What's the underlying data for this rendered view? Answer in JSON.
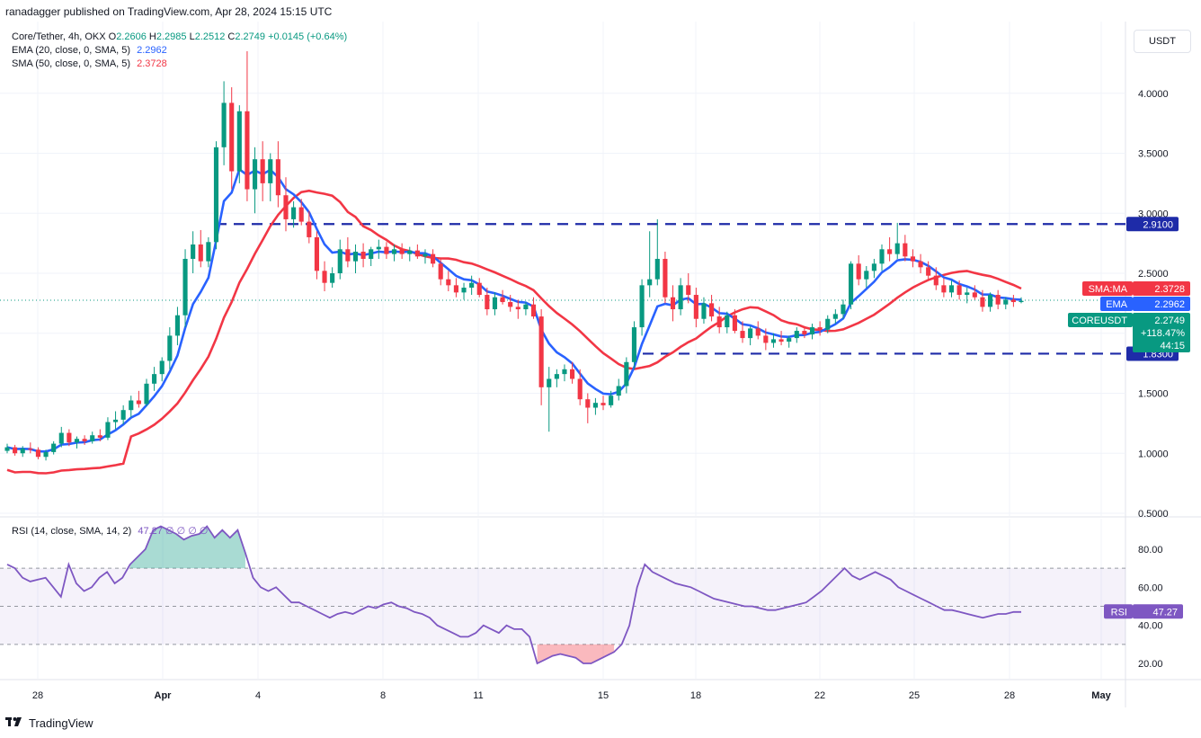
{
  "header": {
    "published": "ranadagger published on TradingView.com, Apr 28, 2024 15:15 UTC"
  },
  "legend": {
    "symbol": "Core/Tether, 4h, OKX",
    "open_label": "O",
    "open": "2.2606",
    "high_label": "H",
    "high": "2.2985",
    "low_label": "L",
    "low": "2.2512",
    "close_label": "C",
    "close": "2.2749",
    "change": "+0.0145 (+0.64%)",
    "ema_label": "EMA (20, close, 0, SMA, 5)",
    "ema_value": "2.2962",
    "sma_label": "SMA (50, close, 0, SMA, 5)",
    "sma_value": "2.3728",
    "rsi_label": "RSI (14, close, SMA, 14, 2)",
    "rsi_values": "47.27  ∅  ∅  ∅  ∅"
  },
  "currency": "USDT",
  "badges": {
    "sma_tag": "SMA:MA",
    "sma_value": "2.3728",
    "ema_tag": "EMA",
    "ema_value": "2.2962",
    "symbol_tag": "COREUSDT",
    "last_price": "2.2749",
    "change_pct": "+118.47%",
    "countdown": "44:15",
    "resistance": "2.9100",
    "support": "1.8300",
    "rsi_tag": "RSI",
    "rsi_value": "47.27"
  },
  "footer": {
    "brand": "TradingView"
  },
  "colors": {
    "up": "#089981",
    "down": "#f23645",
    "ema": "#2962ff",
    "sma": "#f23645",
    "rsi": "#7e57c2",
    "level": "#1e2ba8",
    "grid": "#f0f3fa"
  },
  "chart_data": {
    "type": "candlestick",
    "symbol": "COREUSDT",
    "timeframe": "4h",
    "price_axis": {
      "ticks": [
        "0.5000",
        "1.0000",
        "1.5000",
        "2.0000",
        "2.5000",
        "3.0000",
        "3.5000",
        "4.0000"
      ],
      "ylim": [
        0.5,
        4.3
      ]
    },
    "time_axis": {
      "labels": [
        "28",
        "Apr",
        "4",
        "8",
        "11",
        "15",
        "18",
        "22",
        "25",
        "28",
        "May"
      ]
    },
    "horizontal_levels": [
      {
        "value": 2.91,
        "style": "dashed"
      },
      {
        "value": 1.83,
        "style": "dashed"
      }
    ],
    "candles": [
      [
        1.02,
        1.08,
        1.0,
        1.05
      ],
      [
        1.05,
        1.07,
        0.98,
        1.0
      ],
      [
        1.0,
        1.06,
        0.97,
        1.04
      ],
      [
        1.04,
        1.09,
        1.0,
        1.03
      ],
      [
        1.03,
        1.05,
        0.95,
        0.97
      ],
      [
        0.97,
        1.03,
        0.94,
        1.01
      ],
      [
        1.01,
        1.1,
        0.99,
        1.08
      ],
      [
        1.08,
        1.22,
        1.05,
        1.17
      ],
      [
        1.17,
        1.2,
        1.06,
        1.09
      ],
      [
        1.09,
        1.14,
        1.04,
        1.12
      ],
      [
        1.12,
        1.15,
        1.07,
        1.1
      ],
      [
        1.1,
        1.18,
        1.08,
        1.15
      ],
      [
        1.15,
        1.2,
        1.1,
        1.13
      ],
      [
        1.13,
        1.3,
        1.11,
        1.26
      ],
      [
        1.26,
        1.35,
        1.2,
        1.28
      ],
      [
        1.28,
        1.4,
        1.24,
        1.36
      ],
      [
        1.36,
        1.48,
        1.3,
        1.44
      ],
      [
        1.44,
        1.52,
        1.38,
        1.41
      ],
      [
        1.41,
        1.62,
        1.39,
        1.58
      ],
      [
        1.58,
        1.72,
        1.52,
        1.66
      ],
      [
        1.66,
        1.8,
        1.6,
        1.77
      ],
      [
        1.77,
        2.05,
        1.7,
        1.98
      ],
      [
        1.98,
        2.22,
        1.9,
        2.15
      ],
      [
        2.15,
        2.7,
        2.05,
        2.62
      ],
      [
        2.62,
        2.85,
        2.5,
        2.74
      ],
      [
        2.74,
        2.86,
        2.55,
        2.6
      ],
      [
        2.6,
        2.8,
        2.55,
        2.76
      ],
      [
        2.76,
        3.6,
        2.7,
        3.55
      ],
      [
        3.55,
        4.1,
        3.4,
        3.92
      ],
      [
        3.92,
        4.05,
        3.2,
        3.35
      ],
      [
        3.35,
        3.9,
        3.25,
        3.85
      ],
      [
        3.85,
        4.35,
        3.1,
        3.2
      ],
      [
        3.2,
        3.55,
        3.0,
        3.45
      ],
      [
        3.45,
        3.6,
        3.1,
        3.25
      ],
      [
        3.25,
        3.5,
        3.1,
        3.45
      ],
      [
        3.45,
        3.6,
        3.05,
        3.15
      ],
      [
        3.15,
        3.3,
        2.85,
        2.95
      ],
      [
        2.95,
        3.1,
        2.88,
        3.05
      ],
      [
        3.05,
        3.12,
        2.9,
        2.93
      ],
      [
        2.93,
        3.02,
        2.75,
        2.8
      ],
      [
        2.8,
        2.85,
        2.45,
        2.52
      ],
      [
        2.52,
        2.6,
        2.35,
        2.42
      ],
      [
        2.42,
        2.55,
        2.38,
        2.5
      ],
      [
        2.5,
        2.78,
        2.45,
        2.7
      ],
      [
        2.7,
        2.8,
        2.55,
        2.6
      ],
      [
        2.6,
        2.74,
        2.5,
        2.68
      ],
      [
        2.68,
        2.75,
        2.55,
        2.62
      ],
      [
        2.62,
        2.72,
        2.56,
        2.7
      ],
      [
        2.7,
        2.78,
        2.62,
        2.72
      ],
      [
        2.72,
        2.76,
        2.62,
        2.66
      ],
      [
        2.66,
        2.74,
        2.6,
        2.7
      ],
      [
        2.7,
        2.75,
        2.62,
        2.66
      ],
      [
        2.66,
        2.72,
        2.6,
        2.69
      ],
      [
        2.69,
        2.74,
        2.62,
        2.64
      ],
      [
        2.64,
        2.7,
        2.58,
        2.66
      ],
      [
        2.66,
        2.7,
        2.55,
        2.58
      ],
      [
        2.58,
        2.62,
        2.4,
        2.45
      ],
      [
        2.45,
        2.52,
        2.35,
        2.4
      ],
      [
        2.4,
        2.46,
        2.3,
        2.34
      ],
      [
        2.34,
        2.42,
        2.28,
        2.38
      ],
      [
        2.38,
        2.48,
        2.32,
        2.42
      ],
      [
        2.42,
        2.46,
        2.3,
        2.32
      ],
      [
        2.32,
        2.38,
        2.15,
        2.2
      ],
      [
        2.2,
        2.34,
        2.15,
        2.3
      ],
      [
        2.3,
        2.36,
        2.24,
        2.26
      ],
      [
        2.26,
        2.32,
        2.18,
        2.22
      ],
      [
        2.22,
        2.28,
        2.12,
        2.2
      ],
      [
        2.2,
        2.26,
        2.15,
        2.24
      ],
      [
        2.24,
        2.3,
        2.12,
        2.14
      ],
      [
        2.14,
        2.2,
        1.4,
        1.55
      ],
      [
        1.55,
        1.72,
        1.18,
        1.62
      ],
      [
        1.62,
        1.7,
        1.55,
        1.66
      ],
      [
        1.66,
        1.74,
        1.6,
        1.7
      ],
      [
        1.7,
        1.76,
        1.58,
        1.62
      ],
      [
        1.62,
        1.7,
        1.4,
        1.45
      ],
      [
        1.45,
        1.5,
        1.25,
        1.38
      ],
      [
        1.38,
        1.46,
        1.32,
        1.42
      ],
      [
        1.42,
        1.48,
        1.36,
        1.4
      ],
      [
        1.4,
        1.52,
        1.38,
        1.48
      ],
      [
        1.48,
        1.62,
        1.44,
        1.56
      ],
      [
        1.56,
        1.8,
        1.5,
        1.76
      ],
      [
        1.76,
        2.1,
        1.7,
        2.05
      ],
      [
        2.05,
        2.45,
        1.98,
        2.4
      ],
      [
        2.4,
        2.85,
        2.3,
        2.45
      ],
      [
        2.45,
        2.95,
        2.4,
        2.62
      ],
      [
        2.62,
        2.68,
        2.25,
        2.3
      ],
      [
        2.3,
        2.4,
        2.1,
        2.2
      ],
      [
        2.2,
        2.46,
        2.15,
        2.4
      ],
      [
        2.4,
        2.5,
        2.25,
        2.32
      ],
      [
        2.32,
        2.38,
        2.05,
        2.12
      ],
      [
        2.12,
        2.3,
        2.08,
        2.25
      ],
      [
        2.25,
        2.32,
        2.1,
        2.14
      ],
      [
        2.14,
        2.22,
        2.0,
        2.05
      ],
      [
        2.05,
        2.18,
        2.0,
        2.15
      ],
      [
        2.15,
        2.2,
        2.0,
        2.02
      ],
      [
        2.02,
        2.1,
        1.92,
        1.96
      ],
      [
        1.96,
        2.06,
        1.9,
        2.04
      ],
      [
        2.04,
        2.1,
        1.95,
        1.98
      ],
      [
        1.98,
        2.04,
        1.86,
        1.92
      ],
      [
        1.92,
        2.0,
        1.88,
        1.95
      ],
      [
        1.95,
        2.02,
        1.9,
        1.93
      ],
      [
        1.93,
        1.98,
        1.88,
        1.96
      ],
      [
        1.96,
        2.05,
        1.92,
        2.02
      ],
      [
        2.02,
        2.06,
        1.96,
        1.99
      ],
      [
        1.99,
        2.08,
        1.95,
        2.05
      ],
      [
        2.05,
        2.1,
        1.98,
        2.03
      ],
      [
        2.03,
        2.15,
        2.0,
        2.12
      ],
      [
        2.12,
        2.2,
        2.08,
        2.16
      ],
      [
        2.16,
        2.28,
        2.12,
        2.24
      ],
      [
        2.24,
        2.6,
        2.2,
        2.58
      ],
      [
        2.58,
        2.65,
        2.4,
        2.45
      ],
      [
        2.45,
        2.56,
        2.38,
        2.52
      ],
      [
        2.52,
        2.62,
        2.46,
        2.58
      ],
      [
        2.58,
        2.74,
        2.52,
        2.7
      ],
      [
        2.7,
        2.8,
        2.6,
        2.66
      ],
      [
        2.66,
        2.92,
        2.62,
        2.75
      ],
      [
        2.75,
        2.82,
        2.6,
        2.64
      ],
      [
        2.64,
        2.7,
        2.55,
        2.6
      ],
      [
        2.6,
        2.66,
        2.5,
        2.55
      ],
      [
        2.55,
        2.6,
        2.44,
        2.48
      ],
      [
        2.48,
        2.55,
        2.36,
        2.4
      ],
      [
        2.4,
        2.46,
        2.3,
        2.34
      ],
      [
        2.34,
        2.44,
        2.3,
        2.4
      ],
      [
        2.4,
        2.44,
        2.28,
        2.32
      ],
      [
        2.32,
        2.38,
        2.25,
        2.34
      ],
      [
        2.34,
        2.4,
        2.28,
        2.3
      ],
      [
        2.3,
        2.36,
        2.18,
        2.22
      ],
      [
        2.22,
        2.34,
        2.18,
        2.32
      ],
      [
        2.32,
        2.36,
        2.2,
        2.24
      ],
      [
        2.24,
        2.3,
        2.2,
        2.28
      ],
      [
        2.28,
        2.32,
        2.22,
        2.26
      ],
      [
        2.26,
        2.3,
        2.25,
        2.27
      ]
    ],
    "ema": {
      "period": 20,
      "last": 2.2962
    },
    "sma": {
      "period": 50,
      "last": 2.3728
    },
    "rsi": {
      "period": 14,
      "last": 47.27,
      "upper_band": 70,
      "lower_band": 30,
      "ticks": [
        "20.00",
        "40.00",
        "60.00",
        "80.00"
      ],
      "ylim": [
        15,
        95
      ],
      "values": [
        72,
        70,
        65,
        63,
        64,
        65,
        60,
        55,
        72,
        62,
        58,
        60,
        65,
        68,
        62,
        65,
        72,
        76,
        80,
        90,
        92,
        90,
        88,
        85,
        87,
        88,
        92,
        86,
        90,
        86,
        90,
        78,
        65,
        60,
        58,
        60,
        56,
        52,
        52,
        50,
        48,
        46,
        44,
        46,
        47,
        46,
        48,
        50,
        49,
        51,
        52,
        50,
        49,
        47,
        46,
        44,
        40,
        38,
        36,
        34,
        34,
        36,
        40,
        38,
        36,
        40,
        38,
        38,
        34,
        20,
        22,
        24,
        25,
        24,
        23,
        20,
        20,
        22,
        24,
        26,
        30,
        40,
        60,
        72,
        68,
        66,
        64,
        62,
        61,
        60,
        58,
        56,
        54,
        53,
        52,
        51,
        50,
        50,
        49,
        48,
        48,
        49,
        50,
        51,
        52,
        55,
        58,
        62,
        66,
        70,
        66,
        64,
        66,
        68,
        66,
        64,
        60,
        58,
        56,
        54,
        52,
        50,
        48,
        48,
        47,
        46,
        45,
        44,
        45,
        46,
        46,
        47,
        47
      ]
    }
  }
}
